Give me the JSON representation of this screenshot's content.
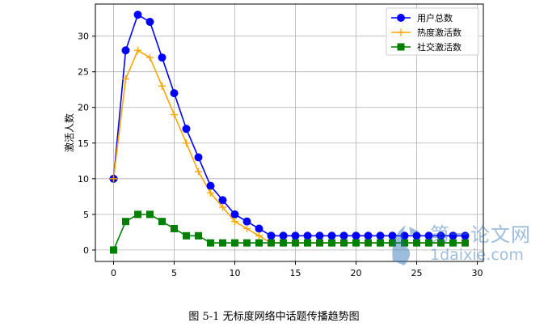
{
  "chart_data": {
    "type": "line",
    "title": "",
    "xlabel": "",
    "ylabel": "激活人数",
    "xlim": [
      -1.5,
      30.5
    ],
    "ylim": [
      -1.6,
      34.5
    ],
    "xticks": [
      0,
      5,
      10,
      15,
      20,
      25,
      30
    ],
    "yticks": [
      0,
      5,
      10,
      15,
      20,
      25,
      30
    ],
    "grid": true,
    "legend_position": "top-right",
    "x": [
      0,
      1,
      2,
      3,
      4,
      5,
      6,
      7,
      8,
      9,
      10,
      11,
      12,
      13,
      14,
      15,
      16,
      17,
      18,
      19,
      20,
      21,
      22,
      23,
      24,
      25,
      26,
      27,
      28,
      29
    ],
    "series": [
      {
        "name": "用户总数",
        "color": "#0000ff",
        "marker": "circle",
        "values": [
          10,
          28,
          33,
          32,
          27,
          22,
          17,
          13,
          9,
          7,
          5,
          4,
          3,
          2,
          2,
          2,
          2,
          2,
          2,
          2,
          2,
          2,
          2,
          2,
          2,
          2,
          2,
          2,
          2,
          2
        ]
      },
      {
        "name": "热度激活数",
        "color": "#ffa500",
        "marker": "plus",
        "values": [
          10,
          24,
          28,
          27,
          23,
          19,
          15,
          11,
          8,
          6,
          4,
          3,
          2,
          1,
          1,
          1,
          1,
          1,
          1,
          1,
          1,
          1,
          1,
          1,
          1,
          1,
          1,
          1,
          1,
          1
        ]
      },
      {
        "name": "社交激活数",
        "color": "#008000",
        "marker": "square",
        "values": [
          0,
          4,
          5,
          5,
          4,
          3,
          2,
          2,
          1,
          1,
          1,
          1,
          1,
          1,
          1,
          1,
          1,
          1,
          1,
          1,
          1,
          1,
          1,
          1,
          1,
          1,
          1,
          1,
          1,
          1
        ]
      }
    ]
  },
  "caption": "图 5-1 无标度网络中话题传播趋势图",
  "watermark": {
    "line1": "第一论文网",
    "line2": "1daixie.com"
  }
}
